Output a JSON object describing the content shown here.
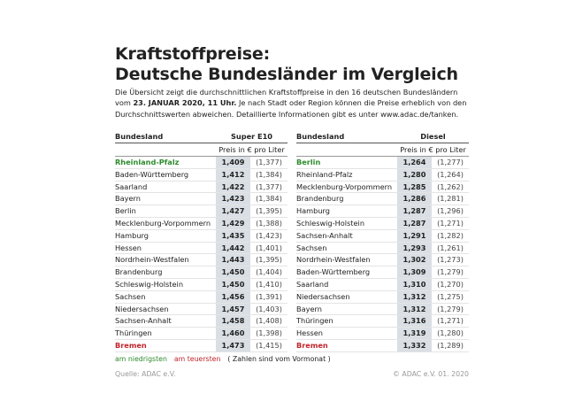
{
  "title": [
    "Kraftstoffpreise:",
    "Deutsche Bundesländer im Vergleich"
  ],
  "intro": [
    "Die Übersicht zeigt die durchschnittlichen Kraftstoffpreise in den 16 deutschen Bundesländern vom ",
    "23. JANUAR 2020, 11 Uhr.",
    " Je nach Stadt oder Region können die Preise erheblich von den Durchschnittswerten abweichen. Detaillierte Informationen gibt es unter www.adac.de/tanken."
  ],
  "tables": [
    {
      "header": [
        "Bundesland",
        "Super E10"
      ],
      "subheader": "Preis in € pro Liter",
      "rows": [
        [
          "Rheinland-Pfalz",
          "1,409",
          "(1,377)"
        ],
        [
          "Baden-Württemberg",
          "1,412",
          "(1,384)"
        ],
        [
          "Saarland",
          "1,422",
          "(1,377)"
        ],
        [
          "Bayern",
          "1,423",
          "(1,384)"
        ],
        [
          "Berlin",
          "1,427",
          "(1,395)"
        ],
        [
          "Mecklenburg-Vorpommern",
          "1,429",
          "(1,388)"
        ],
        [
          "Hamburg",
          "1,435",
          "(1,423)"
        ],
        [
          "Hessen",
          "1,442",
          "(1,401)"
        ],
        [
          "Nordrhein-Westfalen",
          "1,443",
          "(1,395)"
        ],
        [
          "Brandenburg",
          "1,450",
          "(1,404)"
        ],
        [
          "Schleswig-Holstein",
          "1,450",
          "(1,410)"
        ],
        [
          "Sachsen",
          "1,456",
          "(1,391)"
        ],
        [
          "Niedersachsen",
          "1,457",
          "(1,403)"
        ],
        [
          "Sachsen-Anhalt",
          "1,458",
          "(1,408)"
        ],
        [
          "Thüringen",
          "1,460",
          "(1,398)"
        ],
        [
          "Bremen",
          "1,473",
          "(1,415)"
        ]
      ]
    },
    {
      "header": [
        "Bundesland",
        "Diesel"
      ],
      "subheader": "Preis in € pro Liter",
      "rows": [
        [
          "Berlin",
          "1,264",
          "(1,277)"
        ],
        [
          "Rheinland-Pfalz",
          "1,280",
          "(1,264)"
        ],
        [
          "Mecklenburg-Vorpommern",
          "1,285",
          "(1,262)"
        ],
        [
          "Brandenburg",
          "1,286",
          "(1,281)"
        ],
        [
          "Hamburg",
          "1,287",
          "(1,296)"
        ],
        [
          "Schleswig-Holstein",
          "1,287",
          "(1,271)"
        ],
        [
          "Sachsen-Anhalt",
          "1,291",
          "(1,282)"
        ],
        [
          "Sachsen",
          "1,293",
          "(1,261)"
        ],
        [
          "Nordrhein-Westfalen",
          "1,302",
          "(1,273)"
        ],
        [
          "Baden-Württemberg",
          "1,309",
          "(1,279)"
        ],
        [
          "Saarland",
          "1,310",
          "(1,270)"
        ],
        [
          "Niedersachsen",
          "1,312",
          "(1,275)"
        ],
        [
          "Bayern",
          "1,312",
          "(1,279)"
        ],
        [
          "Thüringen",
          "1,316",
          "(1,271)"
        ],
        [
          "Hessen",
          "1,319",
          "(1,280)"
        ],
        [
          "Bremen",
          "1,332",
          "(1,289)"
        ]
      ]
    }
  ],
  "legend": [
    "am niedrigsten",
    "am teuersten",
    "( Zahlen sind vom Vormonat )"
  ],
  "footer": [
    "Quelle: ADAC e.V.",
    "© ADAC e.V. 01. 2020"
  ]
}
